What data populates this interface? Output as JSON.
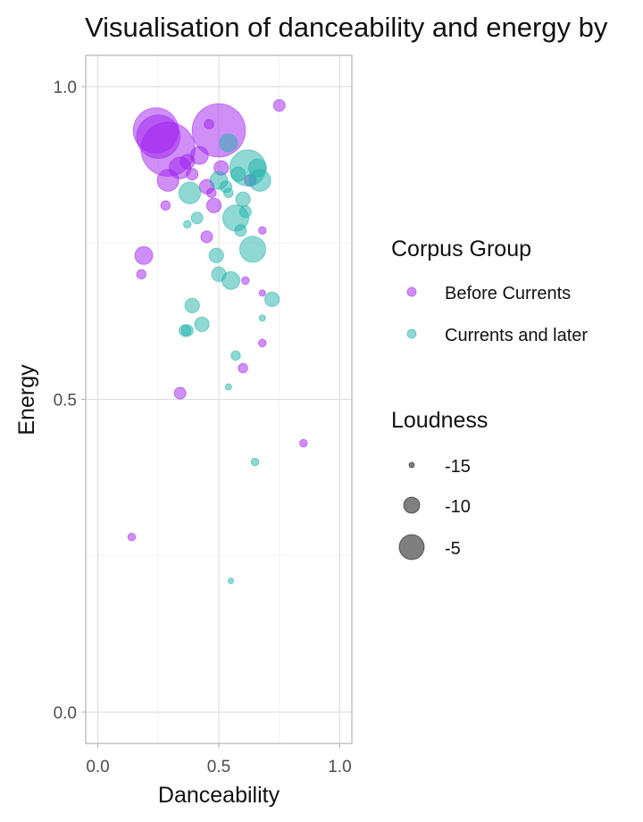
{
  "chart_data": {
    "type": "scatter",
    "title": "Visualisation of danceability and energy by",
    "xlabel": "Danceability",
    "ylabel": "Energy",
    "xlim": [
      -0.05,
      1.05
    ],
    "ylim": [
      -0.05,
      1.05
    ],
    "x_ticks": [
      "0.0",
      "0.5",
      "1.0"
    ],
    "y_ticks": [
      "0.0",
      "0.5",
      "1.0"
    ],
    "grid": true,
    "legend_position": "right",
    "series": [
      {
        "name": "Before Currents",
        "color": "#A020F0",
        "points": [
          {
            "x": 0.24,
            "y": 0.93,
            "loudness": -4.5
          },
          {
            "x": 0.25,
            "y": 0.92,
            "loudness": -4.8
          },
          {
            "x": 0.29,
            "y": 0.9,
            "loudness": -3.2
          },
          {
            "x": 0.5,
            "y": 0.93,
            "loudness": -3.3
          },
          {
            "x": 0.75,
            "y": 0.97,
            "loudness": -12
          },
          {
            "x": 0.46,
            "y": 0.94,
            "loudness": -13
          },
          {
            "x": 0.34,
            "y": 0.87,
            "loudness": -9
          },
          {
            "x": 0.37,
            "y": 0.88,
            "loudness": -11
          },
          {
            "x": 0.29,
            "y": 0.85,
            "loudness": -9
          },
          {
            "x": 0.42,
            "y": 0.89,
            "loudness": -10
          },
          {
            "x": 0.39,
            "y": 0.86,
            "loudness": -12
          },
          {
            "x": 0.51,
            "y": 0.87,
            "loudness": -11
          },
          {
            "x": 0.45,
            "y": 0.84,
            "loudness": -11
          },
          {
            "x": 0.47,
            "y": 0.83,
            "loudness": -13
          },
          {
            "x": 0.48,
            "y": 0.81,
            "loudness": -11
          },
          {
            "x": 0.28,
            "y": 0.81,
            "loudness": -13
          },
          {
            "x": 0.63,
            "y": 0.85,
            "loudness": -12
          },
          {
            "x": 0.45,
            "y": 0.76,
            "loudness": -12
          },
          {
            "x": 0.68,
            "y": 0.77,
            "loudness": -14
          },
          {
            "x": 0.19,
            "y": 0.73,
            "loudness": -10
          },
          {
            "x": 0.18,
            "y": 0.7,
            "loudness": -13
          },
          {
            "x": 0.61,
            "y": 0.69,
            "loudness": -14
          },
          {
            "x": 0.68,
            "y": 0.67,
            "loudness": -15
          },
          {
            "x": 0.68,
            "y": 0.59,
            "loudness": -14
          },
          {
            "x": 0.6,
            "y": 0.55,
            "loudness": -13
          },
          {
            "x": 0.34,
            "y": 0.51,
            "loudness": -12
          },
          {
            "x": 0.85,
            "y": 0.43,
            "loudness": -14
          },
          {
            "x": 0.14,
            "y": 0.28,
            "loudness": -14
          }
        ]
      },
      {
        "name": "Currents and later",
        "color": "#20B2AA",
        "points": [
          {
            "x": 0.54,
            "y": 0.91,
            "loudness": -10
          },
          {
            "x": 0.62,
            "y": 0.87,
            "loudness": -6
          },
          {
            "x": 0.66,
            "y": 0.87,
            "loudness": -10
          },
          {
            "x": 0.58,
            "y": 0.86,
            "loudness": -11
          },
          {
            "x": 0.5,
            "y": 0.85,
            "loudness": -10
          },
          {
            "x": 0.53,
            "y": 0.84,
            "loudness": -12
          },
          {
            "x": 0.67,
            "y": 0.85,
            "loudness": -9
          },
          {
            "x": 0.6,
            "y": 0.82,
            "loudness": -11
          },
          {
            "x": 0.38,
            "y": 0.83,
            "loudness": -9
          },
          {
            "x": 0.54,
            "y": 0.83,
            "loudness": -13
          },
          {
            "x": 0.61,
            "y": 0.8,
            "loudness": -12
          },
          {
            "x": 0.41,
            "y": 0.79,
            "loudness": -12
          },
          {
            "x": 0.37,
            "y": 0.78,
            "loudness": -14
          },
          {
            "x": 0.57,
            "y": 0.79,
            "loudness": -8
          },
          {
            "x": 0.59,
            "y": 0.77,
            "loudness": -12
          },
          {
            "x": 0.64,
            "y": 0.74,
            "loudness": -8
          },
          {
            "x": 0.49,
            "y": 0.73,
            "loudness": -11
          },
          {
            "x": 0.5,
            "y": 0.7,
            "loudness": -11
          },
          {
            "x": 0.55,
            "y": 0.69,
            "loudness": -10
          },
          {
            "x": 0.72,
            "y": 0.66,
            "loudness": -11
          },
          {
            "x": 0.39,
            "y": 0.65,
            "loudness": -11
          },
          {
            "x": 0.68,
            "y": 0.63,
            "loudness": -15
          },
          {
            "x": 0.36,
            "y": 0.61,
            "loudness": -12
          },
          {
            "x": 0.37,
            "y": 0.61,
            "loudness": -12
          },
          {
            "x": 0.43,
            "y": 0.62,
            "loudness": -11
          },
          {
            "x": 0.57,
            "y": 0.57,
            "loudness": -13
          },
          {
            "x": 0.54,
            "y": 0.52,
            "loudness": -15
          },
          {
            "x": 0.65,
            "y": 0.4,
            "loudness": -14
          },
          {
            "x": 0.55,
            "y": 0.21,
            "loudness": -16
          }
        ]
      }
    ],
    "legends": {
      "color": {
        "title": "Corpus Group",
        "items": [
          "Before Currents",
          "Currents and later"
        ]
      },
      "size": {
        "title": "Loudness",
        "items": [
          {
            "label": "-15",
            "value": -15
          },
          {
            "label": "-10",
            "value": -10
          },
          {
            "label": "-5",
            "value": -5
          }
        ]
      }
    }
  }
}
